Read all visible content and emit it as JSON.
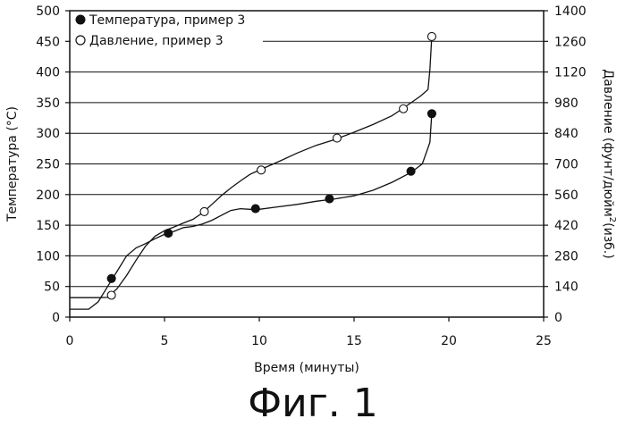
{
  "chart_data": {
    "type": "scatter",
    "title": "",
    "caption": "Фиг. 1",
    "xlabel": "Время (минуты)",
    "ylabel_left": "Температура (°C)",
    "ylabel_right_main": "Давление (фунт/дюйм",
    "ylabel_right_sup": "2",
    "ylabel_right_tail": "(изб.)",
    "xlim": [
      0,
      25
    ],
    "ylim_left": [
      0,
      500
    ],
    "ylim_right": [
      0,
      1400
    ],
    "x_ticks": [
      "0",
      "5",
      "10",
      "15",
      "20",
      "25"
    ],
    "y_left_ticks": [
      "0",
      "50",
      "100",
      "150",
      "200",
      "250",
      "300",
      "350",
      "400",
      "450",
      "500"
    ],
    "y_right_ticks": [
      "0",
      "140",
      "280",
      "420",
      "560",
      "700",
      "840",
      "980",
      "1120",
      "1260",
      "1400"
    ],
    "grid_y": true,
    "legend_position": "top-left",
    "series": [
      {
        "name": "Температура, пример 3",
        "marker": "filled-circle",
        "axis": "left",
        "points": [
          [
            2.2,
            63
          ],
          [
            5.2,
            137
          ],
          [
            9.8,
            177
          ],
          [
            13.7,
            193
          ],
          [
            18.0,
            238
          ],
          [
            19.1,
            332
          ]
        ],
        "curve": [
          [
            0,
            13
          ],
          [
            0.5,
            13
          ],
          [
            1.0,
            13
          ],
          [
            1.5,
            25
          ],
          [
            2.0,
            50
          ],
          [
            2.5,
            75
          ],
          [
            3.0,
            100
          ],
          [
            3.5,
            113
          ],
          [
            4.0,
            120
          ],
          [
            4.5,
            128
          ],
          [
            5.0,
            135
          ],
          [
            5.5,
            140
          ],
          [
            6.0,
            146
          ],
          [
            6.5,
            148
          ],
          [
            7.0,
            152
          ],
          [
            7.5,
            158
          ],
          [
            8.0,
            166
          ],
          [
            8.5,
            174
          ],
          [
            9.0,
            177
          ],
          [
            9.5,
            176
          ],
          [
            10.0,
            176
          ],
          [
            11.0,
            180
          ],
          [
            12.0,
            184
          ],
          [
            13.0,
            189
          ],
          [
            14.0,
            193
          ],
          [
            15.0,
            198
          ],
          [
            16.0,
            207
          ],
          [
            17.0,
            220
          ],
          [
            18.0,
            236
          ],
          [
            18.6,
            250
          ],
          [
            19.0,
            285
          ],
          [
            19.1,
            332
          ]
        ]
      },
      {
        "name": "Давление, пример 3",
        "marker": "open-circle",
        "axis": "right",
        "points": [
          [
            2.2,
            100
          ],
          [
            7.1,
            482
          ],
          [
            10.1,
            672
          ],
          [
            14.1,
            818
          ],
          [
            17.6,
            952
          ],
          [
            19.1,
            1282
          ]
        ],
        "curve": [
          [
            0,
            89
          ],
          [
            0.5,
            89
          ],
          [
            1.0,
            89
          ],
          [
            1.5,
            89
          ],
          [
            2.0,
            90
          ],
          [
            2.5,
            130
          ],
          [
            3.0,
            190
          ],
          [
            3.5,
            260
          ],
          [
            4.0,
            325
          ],
          [
            4.5,
            370
          ],
          [
            5.0,
            395
          ],
          [
            5.5,
            412
          ],
          [
            6.0,
            430
          ],
          [
            6.5,
            447
          ],
          [
            7.0,
            476
          ],
          [
            7.5,
            515
          ],
          [
            8.0,
            555
          ],
          [
            8.5,
            590
          ],
          [
            9.0,
            622
          ],
          [
            9.5,
            652
          ],
          [
            10.0,
            672
          ],
          [
            11.0,
            710
          ],
          [
            12.0,
            750
          ],
          [
            13.0,
            785
          ],
          [
            14.0,
            812
          ],
          [
            15.0,
            845
          ],
          [
            16.0,
            880
          ],
          [
            17.0,
            920
          ],
          [
            17.6,
            955
          ],
          [
            18.5,
            1010
          ],
          [
            18.9,
            1040
          ],
          [
            19.0,
            1130
          ],
          [
            19.1,
            1282
          ]
        ]
      }
    ]
  }
}
